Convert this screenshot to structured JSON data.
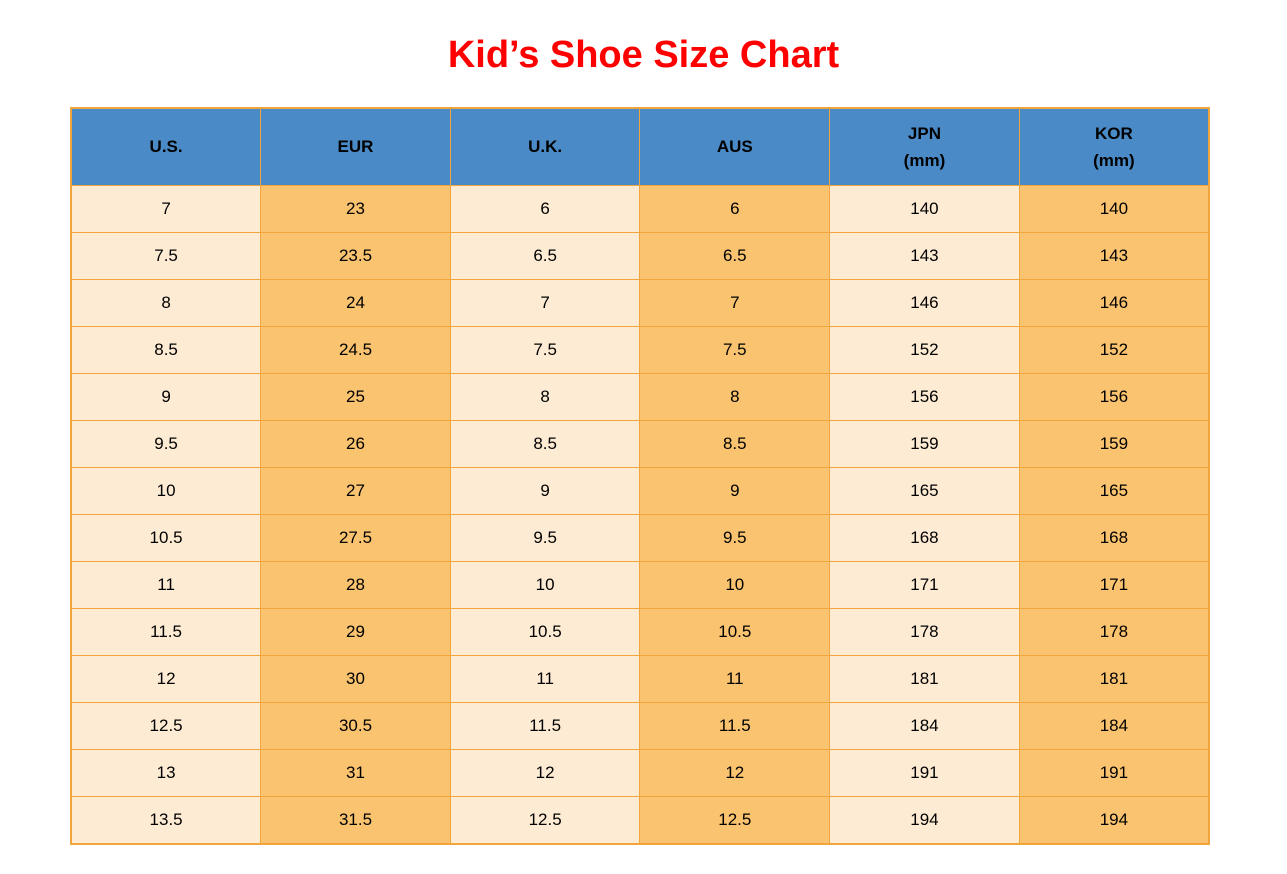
{
  "page": {
    "title": "Kid’s Shoe Size Chart"
  },
  "colors": {
    "title_red": "#ff0000",
    "header_blue": "#4a8ac6",
    "cell_light": "#fdebd3",
    "cell_orange": "#fac36f",
    "border_orange": "#f2a43d",
    "text_black": "#000000"
  },
  "table": {
    "headers": [
      {
        "label": "U.S.",
        "sub": ""
      },
      {
        "label": "EUR",
        "sub": ""
      },
      {
        "label": "U.K.",
        "sub": ""
      },
      {
        "label": "AUS",
        "sub": ""
      },
      {
        "label": "JPN",
        "sub": "(mm)"
      },
      {
        "label": "KOR",
        "sub": "(mm)"
      }
    ],
    "rows": [
      [
        "7",
        "23",
        "6",
        "6",
        "140",
        "140"
      ],
      [
        "7.5",
        "23.5",
        "6.5",
        "6.5",
        "143",
        "143"
      ],
      [
        "8",
        "24",
        "7",
        "7",
        "146",
        "146"
      ],
      [
        "8.5",
        "24.5",
        "7.5",
        "7.5",
        "152",
        "152"
      ],
      [
        "9",
        "25",
        "8",
        "8",
        "156",
        "156"
      ],
      [
        "9.5",
        "26",
        "8.5",
        "8.5",
        "159",
        "159"
      ],
      [
        "10",
        "27",
        "9",
        "9",
        "165",
        "165"
      ],
      [
        "10.5",
        "27.5",
        "9.5",
        "9.5",
        "168",
        "168"
      ],
      [
        "11",
        "28",
        "10",
        "10",
        "171",
        "171"
      ],
      [
        "11.5",
        "29",
        "10.5",
        "10.5",
        "178",
        "178"
      ],
      [
        "12",
        "30",
        "11",
        "11",
        "181",
        "181"
      ],
      [
        "12.5",
        "30.5",
        "11.5",
        "11.5",
        "184",
        "184"
      ],
      [
        "13",
        "31",
        "12",
        "12",
        "191",
        "191"
      ],
      [
        "13.5",
        "31.5",
        "12.5",
        "12.5",
        "194",
        "194"
      ]
    ]
  },
  "chart_data": {
    "type": "table",
    "title": "Kid’s Shoe Size Chart",
    "columns": [
      "U.S.",
      "EUR",
      "U.K.",
      "AUS",
      "JPN (mm)",
      "KOR (mm)"
    ],
    "rows": [
      [
        7,
        23,
        6,
        6,
        140,
        140
      ],
      [
        7.5,
        23.5,
        6.5,
        6.5,
        143,
        143
      ],
      [
        8,
        24,
        7,
        7,
        146,
        146
      ],
      [
        8.5,
        24.5,
        7.5,
        7.5,
        152,
        152
      ],
      [
        9,
        25,
        8,
        8,
        156,
        156
      ],
      [
        9.5,
        26,
        8.5,
        8.5,
        159,
        159
      ],
      [
        10,
        27,
        9,
        9,
        165,
        165
      ],
      [
        10.5,
        27.5,
        9.5,
        9.5,
        168,
        168
      ],
      [
        11,
        28,
        10,
        10,
        171,
        171
      ],
      [
        11.5,
        29,
        10.5,
        10.5,
        178,
        178
      ],
      [
        12,
        30,
        11,
        11,
        181,
        181
      ],
      [
        12.5,
        30.5,
        11.5,
        11.5,
        184,
        184
      ],
      [
        13,
        31,
        12,
        12,
        191,
        191
      ],
      [
        13.5,
        31.5,
        12.5,
        12.5,
        194,
        194
      ]
    ],
    "layout": {
      "column_fill_pattern": [
        "light",
        "orange",
        "light",
        "orange",
        "light",
        "orange"
      ],
      "header_fill": "blue",
      "grid": true
    }
  }
}
